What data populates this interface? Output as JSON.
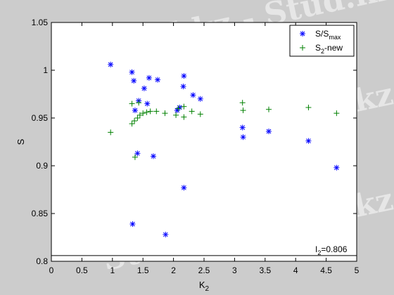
{
  "watermark": {
    "text": "Stud.kz - Stud.kz"
  },
  "chart_data": {
    "type": "scatter",
    "xlabel_base": "K",
    "xlabel_sub": "2",
    "ylabel": "S",
    "xlim": [
      0,
      5
    ],
    "ylim": [
      0.8,
      1.05
    ],
    "xticks": [
      0,
      0.5,
      1,
      1.5,
      2,
      2.5,
      3,
      3.5,
      4,
      4.5,
      5
    ],
    "yticks": [
      0.8,
      0.85,
      0.9,
      0.95,
      1,
      1.05
    ],
    "xtick_labels": [
      "0",
      "0.5",
      "1",
      "1.5",
      "2",
      "2.5",
      "3",
      "3.5",
      "4",
      "4.5",
      "5"
    ],
    "ytick_labels": [
      "0.8",
      "0.85",
      "0.9",
      "0.95",
      "1",
      "1.05"
    ],
    "grid": false,
    "legend_position": "top-right",
    "series": [
      {
        "name_base": "S/S",
        "name_sub": "max",
        "marker": "*",
        "color": "#0000ff",
        "points": [
          [
            0.97,
            1.006
          ],
          [
            1.32,
            0.998
          ],
          [
            1.35,
            0.989
          ],
          [
            1.43,
            0.968
          ],
          [
            1.52,
            0.981
          ],
          [
            1.6,
            0.992
          ],
          [
            1.74,
            0.99
          ],
          [
            1.57,
            0.965
          ],
          [
            1.37,
            0.958
          ],
          [
            2.17,
            0.994
          ],
          [
            2.16,
            0.983
          ],
          [
            2.32,
            0.974
          ],
          [
            2.44,
            0.97
          ],
          [
            2.06,
            0.958
          ],
          [
            2.1,
            0.961
          ],
          [
            3.13,
            0.94
          ],
          [
            3.14,
            0.93
          ],
          [
            3.56,
            0.936
          ],
          [
            4.21,
            0.926
          ],
          [
            4.67,
            0.898
          ],
          [
            1.41,
            0.913
          ],
          [
            1.67,
            0.91
          ],
          [
            2.17,
            0.877
          ],
          [
            1.33,
            0.839
          ],
          [
            1.87,
            0.828
          ]
        ]
      },
      {
        "name_base": "S",
        "name_sub": "2",
        "name_suffix": "-new",
        "marker": "+",
        "color": "#008000",
        "points": [
          [
            0.97,
            0.935
          ],
          [
            1.32,
            0.944
          ],
          [
            1.36,
            0.947
          ],
          [
            1.41,
            0.95
          ],
          [
            1.45,
            0.953
          ],
          [
            1.5,
            0.955
          ],
          [
            1.56,
            0.956
          ],
          [
            1.62,
            0.957
          ],
          [
            1.72,
            0.957
          ],
          [
            1.86,
            0.955
          ],
          [
            2.04,
            0.953
          ],
          [
            2.17,
            0.951
          ],
          [
            2.3,
            0.957
          ],
          [
            2.44,
            0.954
          ],
          [
            2.08,
            0.96
          ],
          [
            2.17,
            0.962
          ],
          [
            1.32,
            0.965
          ],
          [
            1.43,
            0.966
          ],
          [
            3.13,
            0.966
          ],
          [
            3.14,
            0.958
          ],
          [
            3.56,
            0.959
          ],
          [
            4.21,
            0.961
          ],
          [
            4.67,
            0.955
          ],
          [
            1.37,
            0.909
          ]
        ]
      }
    ],
    "hline": {
      "y": 0.806
    },
    "annotation": {
      "base": "I",
      "sub": "2",
      "suffix": "=0.806"
    }
  }
}
